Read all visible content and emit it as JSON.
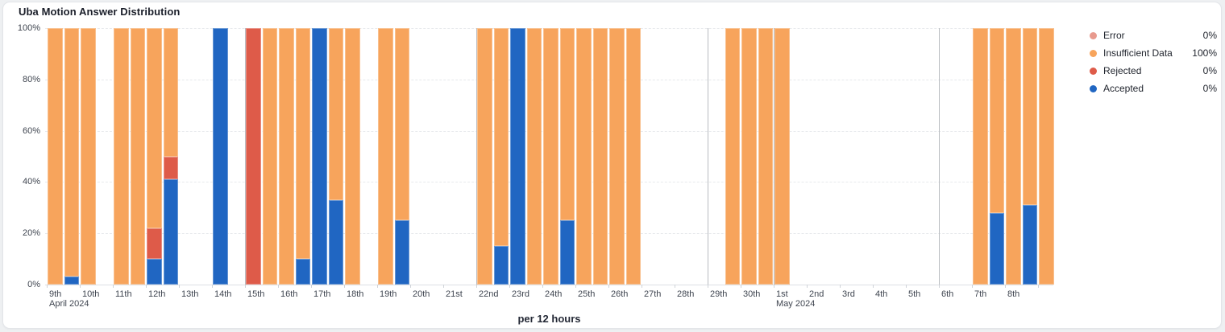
{
  "title": "Uba Motion Answer Distribution",
  "x_axis_title": "per 12 hours",
  "colors": {
    "accepted": "#2066c2",
    "rejected": "#de5b49",
    "error": "#e89a8e",
    "insufficient": "#f7a45c"
  },
  "legend": {
    "items": [
      {
        "key": "error",
        "label": "Error",
        "value": "0%"
      },
      {
        "key": "insufficient",
        "label": "Insufficient Data",
        "value": "100%"
      },
      {
        "key": "rejected",
        "label": "Rejected",
        "value": "0%"
      },
      {
        "key": "accepted",
        "label": "Accepted",
        "value": "0%"
      }
    ]
  },
  "chart_data": {
    "type": "bar",
    "stacked": true,
    "unit": "percent",
    "bucket_size": "12 hours",
    "ylim": [
      0,
      100
    ],
    "grid": true,
    "legend_position": "right",
    "y_ticks": [
      {
        "value": 100,
        "label": "100%"
      },
      {
        "value": 80,
        "label": "80%"
      },
      {
        "value": 60,
        "label": "60%"
      },
      {
        "value": 40,
        "label": "40%"
      },
      {
        "value": 20,
        "label": "20%"
      },
      {
        "value": 0,
        "label": "0%"
      }
    ],
    "x_ticks": [
      {
        "label": "9th",
        "sublabel": "April 2024"
      },
      {
        "label": "10th"
      },
      {
        "label": "11th"
      },
      {
        "label": "12th"
      },
      {
        "label": "13th"
      },
      {
        "label": "14th"
      },
      {
        "label": "15th"
      },
      {
        "label": "16th"
      },
      {
        "label": "17th"
      },
      {
        "label": "18th"
      },
      {
        "label": "19th"
      },
      {
        "label": "20th"
      },
      {
        "label": "21st"
      },
      {
        "label": "22nd"
      },
      {
        "label": "23rd"
      },
      {
        "label": "24th"
      },
      {
        "label": "25th"
      },
      {
        "label": "26th"
      },
      {
        "label": "27th"
      },
      {
        "label": "28th"
      },
      {
        "label": "29th"
      },
      {
        "label": "30th"
      },
      {
        "label": "1st",
        "sublabel": "May 2024"
      },
      {
        "label": "2nd"
      },
      {
        "label": "3rd"
      },
      {
        "label": "4th"
      },
      {
        "label": "5th"
      },
      {
        "label": "6th"
      },
      {
        "label": "7th"
      },
      {
        "label": "8th"
      },
      {
        "label": ""
      }
    ],
    "boundary_line_tick_indices": [
      6,
      13,
      20,
      22,
      27
    ],
    "stack_order": [
      "accepted",
      "rejected",
      "error",
      "insufficient"
    ],
    "bars": [
      {
        "slot": 0,
        "time": "Apr 9 AM",
        "accepted": 0,
        "rejected": 0,
        "error": 0,
        "insufficient": 100
      },
      {
        "slot": 1,
        "time": "Apr 9 PM",
        "accepted": 3,
        "rejected": 0,
        "error": 0,
        "insufficient": 97
      },
      {
        "slot": 2,
        "time": "Apr 10 AM",
        "accepted": 0,
        "rejected": 0,
        "error": 0,
        "insufficient": 100
      },
      {
        "slot": 4,
        "time": "Apr 11 AM",
        "accepted": 0,
        "rejected": 0,
        "error": 0,
        "insufficient": 100
      },
      {
        "slot": 5,
        "time": "Apr 11 PM",
        "accepted": 0,
        "rejected": 0,
        "error": 0,
        "insufficient": 100
      },
      {
        "slot": 6,
        "time": "Apr 12 AM",
        "accepted": 10,
        "rejected": 12,
        "error": 0,
        "insufficient": 78
      },
      {
        "slot": 7,
        "time": "Apr 12 PM",
        "accepted": 41,
        "rejected": 9,
        "error": 0,
        "insufficient": 50
      },
      {
        "slot": 10,
        "time": "Apr 14 AM",
        "accepted": 100,
        "rejected": 0,
        "error": 0,
        "insufficient": 0
      },
      {
        "slot": 12,
        "time": "Apr 15 AM",
        "accepted": 0,
        "rejected": 100,
        "error": 0,
        "insufficient": 0
      },
      {
        "slot": 13,
        "time": "Apr 15 PM",
        "accepted": 0,
        "rejected": 0,
        "error": 0,
        "insufficient": 100
      },
      {
        "slot": 14,
        "time": "Apr 16 AM",
        "accepted": 0,
        "rejected": 0,
        "error": 0,
        "insufficient": 100
      },
      {
        "slot": 15,
        "time": "Apr 16 PM",
        "accepted": 10,
        "rejected": 0,
        "error": 0,
        "insufficient": 90
      },
      {
        "slot": 16,
        "time": "Apr 17 AM",
        "accepted": 100,
        "rejected": 0,
        "error": 0,
        "insufficient": 0
      },
      {
        "slot": 17,
        "time": "Apr 17 PM",
        "accepted": 33,
        "rejected": 0,
        "error": 0,
        "insufficient": 67
      },
      {
        "slot": 18,
        "time": "Apr 18 AM",
        "accepted": 0,
        "rejected": 0,
        "error": 0,
        "insufficient": 100
      },
      {
        "slot": 20,
        "time": "Apr 19 AM",
        "accepted": 0,
        "rejected": 0,
        "error": 0,
        "insufficient": 100
      },
      {
        "slot": 21,
        "time": "Apr 19 PM",
        "accepted": 25,
        "rejected": 0,
        "error": 0,
        "insufficient": 75
      },
      {
        "slot": 26,
        "time": "Apr 22 AM",
        "accepted": 0,
        "rejected": 0,
        "error": 0,
        "insufficient": 100
      },
      {
        "slot": 27,
        "time": "Apr 22 PM",
        "accepted": 15,
        "rejected": 0,
        "error": 0,
        "insufficient": 85
      },
      {
        "slot": 28,
        "time": "Apr 23 AM",
        "accepted": 100,
        "rejected": 0,
        "error": 0,
        "insufficient": 0
      },
      {
        "slot": 29,
        "time": "Apr 23 PM",
        "accepted": 0,
        "rejected": 0,
        "error": 0,
        "insufficient": 100
      },
      {
        "slot": 30,
        "time": "Apr 24 AM",
        "accepted": 0,
        "rejected": 0,
        "error": 0,
        "insufficient": 100
      },
      {
        "slot": 31,
        "time": "Apr 24 PM",
        "accepted": 25,
        "rejected": 0,
        "error": 0,
        "insufficient": 75
      },
      {
        "slot": 32,
        "time": "Apr 25 AM",
        "accepted": 0,
        "rejected": 0,
        "error": 0,
        "insufficient": 100
      },
      {
        "slot": 33,
        "time": "Apr 25 PM",
        "accepted": 0,
        "rejected": 0,
        "error": 0,
        "insufficient": 100
      },
      {
        "slot": 34,
        "time": "Apr 26 AM",
        "accepted": 0,
        "rejected": 0,
        "error": 0,
        "insufficient": 100
      },
      {
        "slot": 35,
        "time": "Apr 26 PM",
        "accepted": 0,
        "rejected": 0,
        "error": 0,
        "insufficient": 100
      },
      {
        "slot": 41,
        "time": "Apr 29 PM",
        "accepted": 0,
        "rejected": 0,
        "error": 0,
        "insufficient": 100
      },
      {
        "slot": 42,
        "time": "Apr 30 AM",
        "accepted": 0,
        "rejected": 0,
        "error": 0,
        "insufficient": 100
      },
      {
        "slot": 43,
        "time": "Apr 30 PM",
        "accepted": 0,
        "rejected": 0,
        "error": 0,
        "insufficient": 100
      },
      {
        "slot": 44,
        "time": "May 1 AM",
        "accepted": 0,
        "rejected": 0,
        "error": 0,
        "insufficient": 100
      },
      {
        "slot": 56,
        "time": "May 7 AM",
        "accepted": 0,
        "rejected": 0,
        "error": 0,
        "insufficient": 100
      },
      {
        "slot": 57,
        "time": "May 7 PM",
        "accepted": 28,
        "rejected": 0,
        "error": 0,
        "insufficient": 72
      },
      {
        "slot": 58,
        "time": "May 8 AM",
        "accepted": 0,
        "rejected": 0,
        "error": 0,
        "insufficient": 100
      },
      {
        "slot": 59,
        "time": "May 8 PM",
        "accepted": 31,
        "rejected": 0,
        "error": 0,
        "insufficient": 69
      },
      {
        "slot": 60,
        "time": "May 9 AM",
        "accepted": 0,
        "rejected": 0,
        "error": 0,
        "insufficient": 100
      }
    ]
  }
}
